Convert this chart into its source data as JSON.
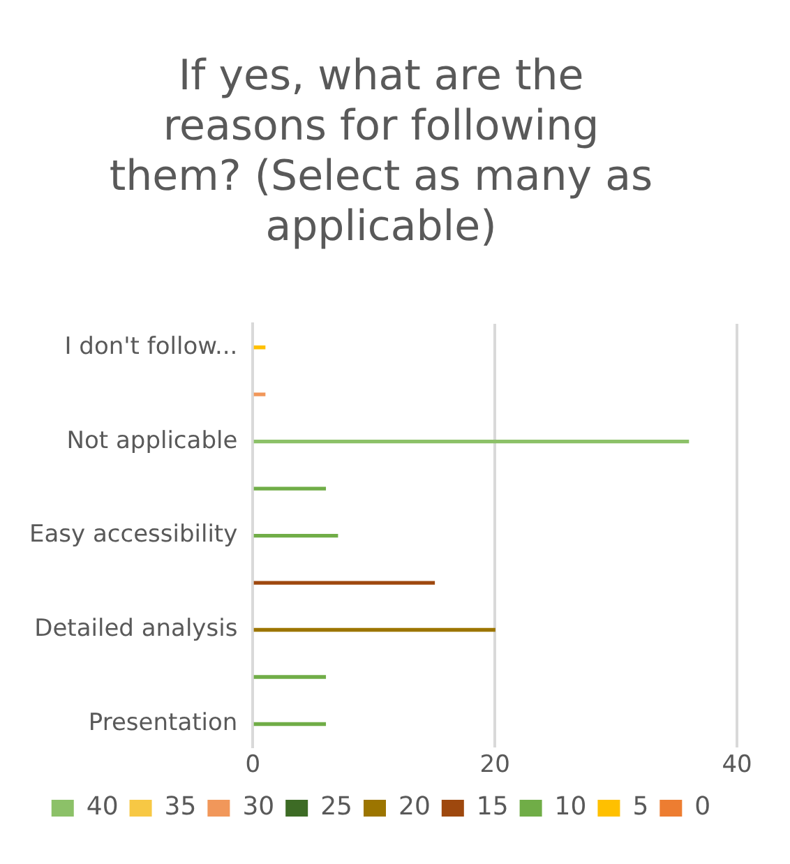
{
  "chart_data": {
    "type": "bar",
    "orientation": "horizontal",
    "stacked": true,
    "title": "If yes, what are the reasons for following them? (Select as many as applicable)",
    "categories": [
      "I don't follow...",
      null,
      "Not applicable",
      null,
      "Easy accessibility",
      null,
      "Detailed analysis",
      null,
      "Presentation"
    ],
    "series": [
      {
        "name": "40",
        "color": "#8cc168",
        "values": [
          null,
          null,
          36,
          null,
          null,
          null,
          null,
          null,
          null
        ]
      },
      {
        "name": "35",
        "color": "#f7c844",
        "values": [
          null,
          null,
          null,
          null,
          null,
          null,
          null,
          null,
          null
        ]
      },
      {
        "name": "30",
        "color": "#f1975a",
        "values": [
          null,
          1,
          null,
          null,
          null,
          null,
          null,
          null,
          null
        ]
      },
      {
        "name": "25",
        "color": "#3d6b25",
        "values": [
          null,
          null,
          null,
          null,
          null,
          null,
          null,
          null,
          null
        ]
      },
      {
        "name": "20",
        "color": "#9c7500",
        "values": [
          null,
          null,
          null,
          null,
          null,
          null,
          20,
          null,
          null
        ]
      },
      {
        "name": "15",
        "color": "#9e480e",
        "values": [
          null,
          null,
          null,
          null,
          null,
          15,
          null,
          null,
          null
        ]
      },
      {
        "name": "10",
        "color": "#70ad47",
        "values": [
          null,
          null,
          null,
          6,
          7,
          null,
          null,
          6,
          6
        ]
      },
      {
        "name": "5",
        "color": "#ffc000",
        "values": [
          1,
          null,
          null,
          null,
          null,
          null,
          null,
          null,
          null
        ]
      },
      {
        "name": "0",
        "color": "#ed7d31",
        "values": [
          null,
          null,
          null,
          null,
          null,
          null,
          null,
          null,
          null
        ]
      }
    ],
    "xlim": [
      0,
      40
    ],
    "xticks": [
      0,
      20,
      40
    ],
    "grid": "x",
    "legend": "bottom"
  }
}
